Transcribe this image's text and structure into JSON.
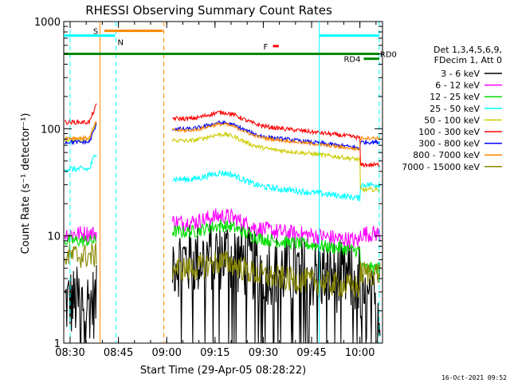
{
  "chart_data": {
    "type": "line",
    "title": "RHESSI Observing Summary Count Rates",
    "xlabel": "Start Time (29-Apr-05 08:28:22)",
    "ylabel": "Count Rate (s⁻¹ detector⁻¹)",
    "y_scale": "log",
    "ylim": [
      1,
      1000
    ],
    "xlim_minutes": [
      8.467,
      10.117
    ],
    "x_ticks": [
      {
        "t": 8.5,
        "label": "08:30"
      },
      {
        "t": 8.75,
        "label": "08:45"
      },
      {
        "t": 9.0,
        "label": "09:00"
      },
      {
        "t": 9.25,
        "label": "09:15"
      },
      {
        "t": 9.5,
        "label": "09:30"
      },
      {
        "t": 9.75,
        "label": "09:45"
      },
      {
        "t": 10.0,
        "label": "10:00"
      }
    ],
    "y_ticks": [
      {
        "v": 1,
        "label": "1"
      },
      {
        "v": 10,
        "label": "10"
      },
      {
        "v": 100,
        "label": "100"
      },
      {
        "v": 1000,
        "label": "1000"
      }
    ],
    "legend": {
      "header": [
        "Det 1,3,4,5,6,9,",
        "FDecim 1, Att 0"
      ],
      "placement": "right"
    },
    "series": [
      {
        "name": "3 - 6 keV",
        "color": "#000000",
        "pre": 2.4,
        "mid": 6.0,
        "post": 2.2,
        "noise": 0.35
      },
      {
        "name": "6 - 12 keV",
        "color": "#ff00ff",
        "pre": 10.5,
        "mid": 13.5,
        "post": 10.5,
        "noise": 0.08
      },
      {
        "name": "12 - 25 keV",
        "color": "#00dd00",
        "pre": 9.0,
        "mid": 11.0,
        "post": 5.0,
        "noise": 0.06
      },
      {
        "name": "25 - 50 keV",
        "color": "#00ffff",
        "pre": 42,
        "mid": 34,
        "post": 30,
        "noise": 0.03
      },
      {
        "name": "50 - 100 keV",
        "color": "#cccc00",
        "pre": 78,
        "mid": 78,
        "post": 27,
        "noise": 0.02
      },
      {
        "name": "100 - 300 keV",
        "color": "#ff0000",
        "pre": 115,
        "mid": 125,
        "post": 46,
        "noise": 0.02
      },
      {
        "name": "300 - 800 keV",
        "color": "#0000ff",
        "pre": 75,
        "mid": 100,
        "post": 75,
        "noise": 0.02
      },
      {
        "name": "800 - 7000 keV",
        "color": "#ff8800",
        "pre": 82,
        "mid": 97,
        "post": 82,
        "noise": 0.015
      },
      {
        "name": "7000 - 15000 keV",
        "color": "#888800",
        "pre": 6.5,
        "mid": 5.0,
        "post": 4.5,
        "noise": 0.12
      }
    ],
    "gaps": [
      [
        8.64,
        9.03
      ]
    ],
    "post_attenuator_start": 10.0,
    "annotations": [
      {
        "label": "S",
        "color": "#ff8800",
        "start": 8.677,
        "end": 8.98,
        "level": 820
      },
      {
        "label": "N",
        "color": "#00ffff",
        "start": 8.467,
        "end": 8.733,
        "level": 740
      },
      {
        "label": "N",
        "color": "#00ffff",
        "start": 9.79,
        "end": 10.1,
        "level": 740
      },
      {
        "label": "F",
        "color": "#ff0000",
        "start": 9.55,
        "end": 9.58,
        "level": 590
      },
      {
        "label": "RD0",
        "color": "#008800",
        "start": 8.467,
        "end": 10.1,
        "level": 500
      },
      {
        "label": "RD4",
        "color": "#008800",
        "start": 10.02,
        "end": 10.1,
        "level": 450
      }
    ],
    "vertical_markers": [
      {
        "t": 8.5,
        "color": "#00ffff",
        "style": "dashed"
      },
      {
        "t": 8.655,
        "color": "#ff8800",
        "style": "solid"
      },
      {
        "t": 8.737,
        "color": "#00ffff",
        "style": "dashed"
      },
      {
        "t": 8.985,
        "color": "#ff8800",
        "style": "dashed"
      },
      {
        "t": 9.79,
        "color": "#00ffff",
        "style": "solid"
      },
      {
        "t": 10.1,
        "color": "#00ffff",
        "style": "dashed"
      }
    ]
  },
  "footer": {
    "timestamp": "16-Oct-2021 09:52"
  }
}
